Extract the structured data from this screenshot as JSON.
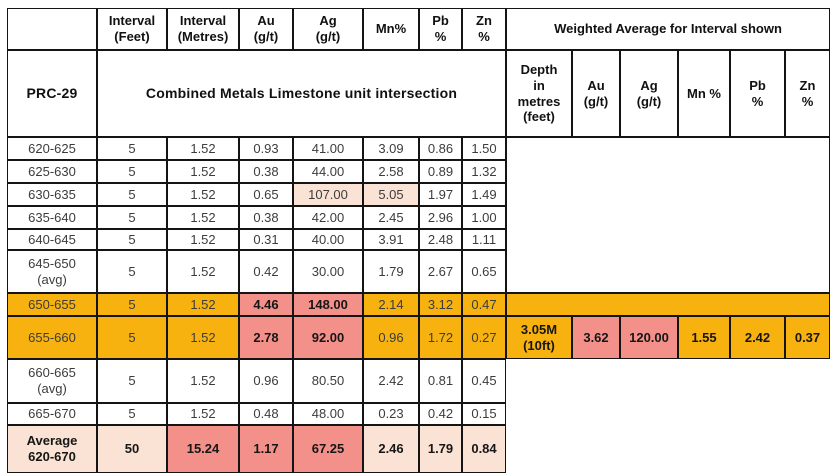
{
  "colors": {
    "highlight_orange": "#F7B210",
    "highlight_salmon": "#F4908A",
    "highlight_peach": "#FAE3D4",
    "border": "#141414"
  },
  "left_header": {
    "columns": [
      "Interval\n(Feet)",
      "Interval\n(Metres)",
      "Au\n(g/t)",
      "Ag\n(g/t)",
      "Mn%",
      "Pb\n%",
      "Zn\n%"
    ],
    "drill_hole": "PRC-29",
    "intersection": "Combined Metals Limestone unit intersection"
  },
  "right_header": {
    "title": "Weighted Average for Interval shown",
    "columns": [
      "Depth\nin\nmetres\n(feet)",
      "Au\n(g/t)",
      "Ag\n(g/t)",
      "Mn %",
      "Pb\n%",
      "Zn\n%"
    ]
  },
  "rows": [
    {
      "label": "620-625",
      "feet": "5",
      "metres": "1.52",
      "au": "0.93",
      "ag": "41.00",
      "mn": "3.09",
      "pb": "0.86",
      "zn": "1.50"
    },
    {
      "label": "625-630",
      "feet": "5",
      "metres": "1.52",
      "au": "0.38",
      "ag": "44.00",
      "mn": "2.58",
      "pb": "0.89",
      "zn": "1.32"
    },
    {
      "label": "630-635",
      "feet": "5",
      "metres": "1.52",
      "au": "0.65",
      "ag": "107.00",
      "mn": "5.05",
      "pb": "1.97",
      "zn": "1.49"
    },
    {
      "label": "635-640",
      "feet": "5",
      "metres": "1.52",
      "au": "0.38",
      "ag": "42.00",
      "mn": "2.45",
      "pb": "2.96",
      "zn": "1.00"
    },
    {
      "label": "640-645",
      "feet": "5",
      "metres": "1.52",
      "au": "0.31",
      "ag": "40.00",
      "mn": "3.91",
      "pb": "2.48",
      "zn": "1.11"
    },
    {
      "label": "645-650\n(avg)",
      "feet": "5",
      "metres": "1.52",
      "au": "0.42",
      "ag": "30.00",
      "mn": "1.79",
      "pb": "2.67",
      "zn": "0.65"
    },
    {
      "label": "650-655",
      "feet": "5",
      "metres": "1.52",
      "au": "4.46",
      "ag": "148.00",
      "mn": "2.14",
      "pb": "3.12",
      "zn": "0.47"
    },
    {
      "label": "655-660",
      "feet": "5",
      "metres": "1.52",
      "au": "2.78",
      "ag": "92.00",
      "mn": "0.96",
      "pb": "1.72",
      "zn": "0.27"
    },
    {
      "label": "660-665\n(avg)",
      "feet": "5",
      "metres": "1.52",
      "au": "0.96",
      "ag": "80.50",
      "mn": "2.42",
      "pb": "0.81",
      "zn": "0.45"
    },
    {
      "label": "665-670",
      "feet": "5",
      "metres": "1.52",
      "au": "0.48",
      "ag": "48.00",
      "mn": "0.23",
      "pb": "0.42",
      "zn": "0.15"
    },
    {
      "label": "Average\n620-670",
      "feet": "50",
      "metres": "15.24",
      "au": "1.17",
      "ag": "67.25",
      "mn": "2.46",
      "pb": "1.79",
      "zn": "0.84"
    }
  ],
  "weighted_average": {
    "depth": "3.05M\n(10ft)",
    "au": "3.62",
    "ag": "120.00",
    "mn": "1.55",
    "pb": "2.42",
    "zn": "0.37"
  }
}
